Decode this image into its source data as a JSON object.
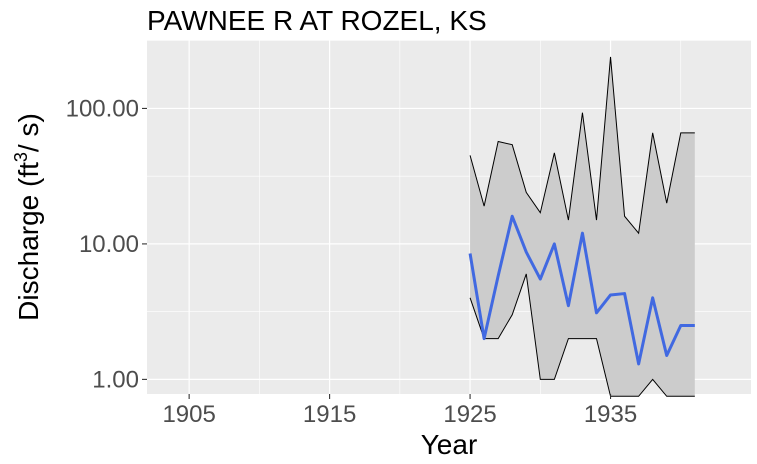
{
  "chart_data": {
    "type": "line",
    "title": "PAWNEE R AT ROZEL, KS",
    "xlabel": "Year",
    "ylabel": {
      "prefix": "Discharge (",
      "unit": "ft",
      "superscript": "3",
      "suffix": "/ s)"
    },
    "xlim": [
      1902,
      1945
    ],
    "ylim": [
      0.78,
      320
    ],
    "y_scale": "log",
    "x_ticks": [
      1905,
      1915,
      1925,
      1935
    ],
    "x_tick_labels": [
      "1905",
      "1915",
      "1925",
      "1935"
    ],
    "y_ticks": [
      1,
      10,
      100
    ],
    "y_tick_labels": [
      "1.00",
      "10.00",
      "100.00"
    ],
    "grid": true,
    "colors": {
      "panel": "#EBEBEB",
      "grid": "#FFFFFF",
      "band_fill": "#CCCCCC",
      "band_line": "#000000",
      "median_line": "#4169E1"
    },
    "series": [
      {
        "role": "upper",
        "x": [
          1925,
          1926,
          1927,
          1928,
          1929,
          1930,
          1931,
          1932,
          1933,
          1934,
          1935,
          1936,
          1937,
          1938,
          1939,
          1940,
          1941
        ],
        "values": [
          45,
          19,
          57,
          54,
          24,
          17,
          47,
          15,
          93,
          15,
          240,
          16,
          12,
          66,
          20,
          66,
          66
        ]
      },
      {
        "role": "median",
        "x": [
          1925,
          1926,
          1927,
          1928,
          1929,
          1930,
          1931,
          1932,
          1933,
          1934,
          1935,
          1936,
          1937,
          1938,
          1939,
          1940,
          1941
        ],
        "values": [
          8.5,
          2.0,
          5.8,
          16,
          8.7,
          5.5,
          10,
          3.5,
          12,
          3.1,
          4.2,
          4.3,
          1.3,
          4.0,
          1.5,
          2.5,
          2.5
        ]
      },
      {
        "role": "lower",
        "x": [
          1925,
          1926,
          1927,
          1928,
          1929,
          1930,
          1931,
          1932,
          1933,
          1934,
          1935,
          1936,
          1937,
          1938,
          1939,
          1940,
          1941
        ],
        "values": [
          4.0,
          2.0,
          2.0,
          3.0,
          6.0,
          1.0,
          1.0,
          2.0,
          2.0,
          2.0,
          0.75,
          0.75,
          0.75,
          1.0,
          0.75,
          0.75,
          0.75
        ]
      }
    ]
  }
}
